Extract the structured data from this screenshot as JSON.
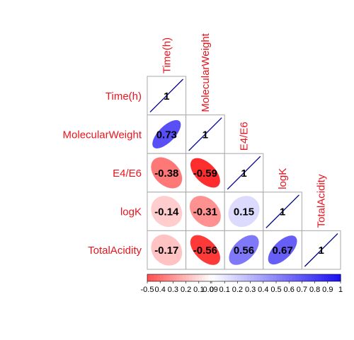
{
  "chart_data": {
    "type": "heatmap",
    "subtype": "correlation-matrix-lower-triangle",
    "variables": [
      "Time(h)",
      "MolecularWeight",
      "E4/E6",
      "logK",
      "TotalAcidity"
    ],
    "matrix": [
      [
        1,
        null,
        null,
        null,
        null
      ],
      [
        0.73,
        1,
        null,
        null,
        null
      ],
      [
        -0.38,
        -0.59,
        1,
        null,
        null
      ],
      [
        -0.14,
        -0.31,
        0.15,
        1,
        null
      ],
      [
        -0.17,
        -0.56,
        0.56,
        0.67,
        1
      ]
    ],
    "value_labels": [
      [
        "1"
      ],
      [
        "0.73",
        "1"
      ],
      [
        "-0.38",
        "-0.59",
        "1"
      ],
      [
        "-0.14",
        "-0.31",
        "0.15",
        "1"
      ],
      [
        "-0.17",
        "-0.56",
        "0.56",
        "0.67",
        "1"
      ]
    ],
    "colorbar": {
      "range": [
        -0.5,
        1
      ],
      "tick_labels": [
        "-0.5",
        "-0.4",
        "-0.3",
        "-0.2",
        "-0.1",
        "0",
        "0.1",
        "0.2",
        "0.3",
        "0.4",
        "0.5",
        "0.6",
        "0.7",
        "0.8",
        "0.9",
        "1"
      ],
      "tick_values": [
        -0.5,
        -0.4,
        -0.3,
        -0.2,
        -0.1,
        0,
        0.1,
        0.2,
        0.3,
        0.4,
        0.5,
        0.6,
        0.7,
        0.8,
        0.9,
        1
      ],
      "rendered_tick_text": [
        "-0.5",
        "0.4",
        "0.3",
        "0.2",
        "0.1",
        "0.09",
        "0",
        "0.1",
        "0.2",
        "0.3",
        "0.4",
        "0.5",
        "0.6",
        "0.7",
        "0.8",
        "0.9",
        "1"
      ],
      "placement": "bottom"
    },
    "colors": {
      "label": "#e8141e",
      "positive": "#1a0ef2",
      "negative": "#ff2a2a",
      "diagonal_line": "#00008b",
      "grid": "#a9a9a9"
    },
    "glyph": "ellipse",
    "grid": true
  }
}
